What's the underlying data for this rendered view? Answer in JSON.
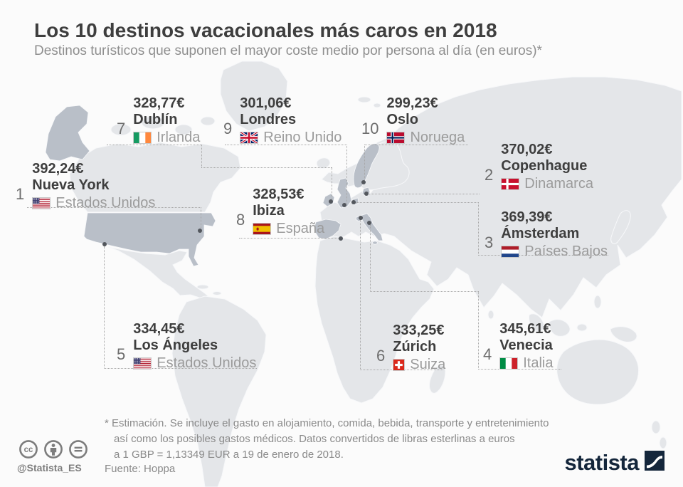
{
  "header": {
    "title": "Los 10 destinos vacacionales más caros en 2018",
    "subtitle": "Destinos turísticos que suponen el mayor coste medio por persona al día (en euros)*"
  },
  "chart_data": {
    "type": "map",
    "title": "Los 10 destinos vacacionales más caros en 2018",
    "unit": "EUR por persona al día",
    "destinations": [
      {
        "rank": 1,
        "price_label": "392,24€",
        "eur_per_day": 392.24,
        "city": "Nueva York",
        "country": "Estados Unidos",
        "flag": "us"
      },
      {
        "rank": 2,
        "price_label": "370,02€",
        "eur_per_day": 370.02,
        "city": "Copenhague",
        "country": "Dinamarca",
        "flag": "dk"
      },
      {
        "rank": 3,
        "price_label": "369,39€",
        "eur_per_day": 369.39,
        "city": "Ámsterdam",
        "country": "Países Bajos",
        "flag": "nl"
      },
      {
        "rank": 4,
        "price_label": "345,61€",
        "eur_per_day": 345.61,
        "city": "Venecia",
        "country": "Italia",
        "flag": "it"
      },
      {
        "rank": 5,
        "price_label": "334,45€",
        "eur_per_day": 334.45,
        "city": "Los Ángeles",
        "country": "Estados Unidos",
        "flag": "us"
      },
      {
        "rank": 6,
        "price_label": "333,25€",
        "eur_per_day": 333.25,
        "city": "Zúrich",
        "country": "Suiza",
        "flag": "ch"
      },
      {
        "rank": 7,
        "price_label": "328,77€",
        "eur_per_day": 328.77,
        "city": "Dublín",
        "country": "Irlanda",
        "flag": "ie"
      },
      {
        "rank": 8,
        "price_label": "328,53€",
        "eur_per_day": 328.53,
        "city": "Ibiza",
        "country": "España",
        "flag": "es"
      },
      {
        "rank": 9,
        "price_label": "301,06€",
        "eur_per_day": 301.06,
        "city": "Londres",
        "country": "Reino Unido",
        "flag": "gb"
      },
      {
        "rank": 10,
        "price_label": "299,23€",
        "eur_per_day": 299.23,
        "city": "Oslo",
        "country": "Noruega",
        "flag": "no"
      }
    ]
  },
  "footer": {
    "footnote_lines": [
      "* Estimación. Se incluye el gasto en alojamiento, comida, bebida, transporte y entretenimiento",
      "así como los posibles gastos médicos. Datos convertidos de libras esterlinas a euros",
      "a 1 GBP = 1,13349 EUR a 19 de enero de 2018."
    ],
    "source": "Fuente: Hoppa",
    "handle": "@Statista_ES",
    "brand": "statista"
  },
  "colors": {
    "map_base": "#e4e6e9",
    "map_highlight": "#b9bfc8",
    "dot": "#53575d",
    "leader_line": "#a6a6a6",
    "title_text": "#3e3e3e",
    "muted_text": "#8e8e8e",
    "brand_navy": "#14263b"
  }
}
